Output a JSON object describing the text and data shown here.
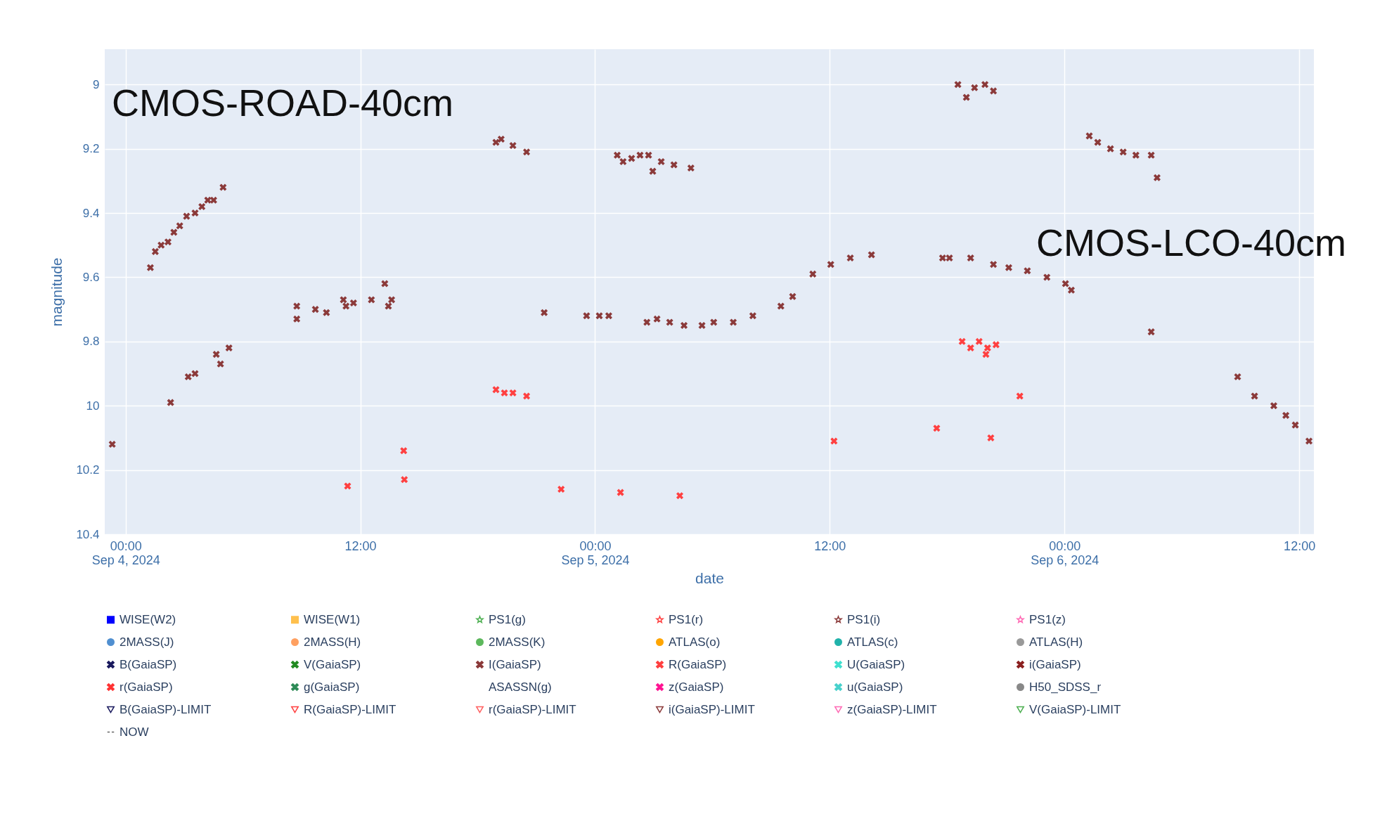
{
  "chart_data": {
    "type": "scatter",
    "xlabel": "date",
    "ylabel": "magnitude",
    "annotations": [
      "CMOS-ROAD-40cm",
      "CMOS-LCO-40cm"
    ],
    "xlim": [
      "2024-09-03T22:56",
      "2024-09-06T12:45"
    ],
    "xticks": [
      {
        "value": "2024-09-04T00:00",
        "label": "00:00\nSep 4, 2024"
      },
      {
        "value": "2024-09-04T12:00",
        "label": "12:00"
      },
      {
        "value": "2024-09-05T00:00",
        "label": "00:00\nSep 5, 2024"
      },
      {
        "value": "2024-09-05T12:00",
        "label": "12:00"
      },
      {
        "value": "2024-09-06T00:00",
        "label": "00:00\nSep 6, 2024"
      },
      {
        "value": "2024-09-06T12:00",
        "label": "12:00"
      }
    ],
    "ylim": [
      10.4,
      8.89
    ],
    "yticks": [
      9,
      9.2,
      9.4,
      9.6,
      9.8,
      10,
      10.2,
      10.4
    ],
    "grid": true,
    "legend": "bottom",
    "series": [
      {
        "name": "WISE(W2)",
        "color": "#0000ff",
        "marker": "square"
      },
      {
        "name": "WISE(W1)",
        "color": "#ffc04d",
        "marker": "square"
      },
      {
        "name": "PS1(g)",
        "color": "#4caf50",
        "marker": "star"
      },
      {
        "name": "PS1(r)",
        "color": "#ff4040",
        "marker": "star"
      },
      {
        "name": "PS1(i)",
        "color": "#8b3a3a",
        "marker": "star"
      },
      {
        "name": "PS1(z)",
        "color": "#ff69b4",
        "marker": "star"
      },
      {
        "name": "2MASS(J)",
        "color": "#4f8fd0",
        "marker": "circle"
      },
      {
        "name": "2MASS(H)",
        "color": "#ffa060",
        "marker": "circle"
      },
      {
        "name": "2MASS(K)",
        "color": "#5cb85c",
        "marker": "circle"
      },
      {
        "name": "ATLAS(o)",
        "color": "#ffa500",
        "marker": "circle"
      },
      {
        "name": "ATLAS(c)",
        "color": "#20b2aa",
        "marker": "circle"
      },
      {
        "name": "ATLAS(H)",
        "color": "#999999",
        "marker": "circle"
      },
      {
        "name": "B(GaiaSP)",
        "color": "#1a1a5e",
        "marker": "cross"
      },
      {
        "name": "V(GaiaSP)",
        "color": "#228b22",
        "marker": "cross"
      },
      {
        "name": "I(GaiaSP)",
        "color": "#8b3a3a",
        "marker": "cross",
        "x": [
          "2024-09-03T23:19",
          "2024-09-04T01:16",
          "2024-09-04T01:31",
          "2024-09-04T01:49",
          "2024-09-04T02:10",
          "2024-09-04T02:28",
          "2024-09-04T02:46",
          "2024-09-04T03:07",
          "2024-09-04T03:33",
          "2024-09-04T03:54",
          "2024-09-04T04:12",
          "2024-09-04T04:30",
          "2024-09-04T04:59",
          "2024-09-04T02:18",
          "2024-09-04T03:12",
          "2024-09-04T03:33",
          "2024-09-04T04:38",
          "2024-09-04T04:51",
          "2024-09-04T05:17",
          "2024-09-04T08:45",
          "2024-09-04T08:45",
          "2024-09-04T09:42",
          "2024-09-04T10:16",
          "2024-09-04T11:08",
          "2024-09-04T11:16",
          "2024-09-04T11:39",
          "2024-09-04T12:34",
          "2024-09-04T13:15",
          "2024-09-04T13:26",
          "2024-09-04T13:36",
          "2024-09-04T18:56",
          "2024-09-04T19:12",
          "2024-09-04T19:48",
          "2024-09-04T20:30",
          "2024-09-04T21:24",
          "2024-09-04T23:34",
          "2024-09-05T00:13",
          "2024-09-05T00:42",
          "2024-09-05T01:08",
          "2024-09-05T01:26",
          "2024-09-05T01:52",
          "2024-09-05T02:18",
          "2024-09-05T02:44",
          "2024-09-05T02:57",
          "2024-09-05T03:23",
          "2024-09-05T04:02",
          "2024-09-05T04:54",
          "2024-09-05T02:39",
          "2024-09-05T03:10",
          "2024-09-05T03:49",
          "2024-09-05T04:33",
          "2024-09-05T05:28",
          "2024-09-05T06:04",
          "2024-09-05T07:04",
          "2024-09-05T08:04",
          "2024-09-05T09:30",
          "2024-09-05T10:06",
          "2024-09-05T11:08",
          "2024-09-05T12:03",
          "2024-09-05T13:03",
          "2024-09-05T14:08",
          "2024-09-05T17:46",
          "2024-09-05T18:07",
          "2024-09-05T19:12",
          "2024-09-05T20:22",
          "2024-09-05T21:09",
          "2024-09-05T22:06",
          "2024-09-05T23:06",
          "2024-09-06T00:03",
          "2024-09-06T00:21",
          "2024-09-05T18:33",
          "2024-09-05T18:59",
          "2024-09-05T19:24",
          "2024-09-05T19:56",
          "2024-09-05T20:22",
          "2024-09-06T01:16",
          "2024-09-06T01:42",
          "2024-09-06T02:21",
          "2024-09-06T03:00",
          "2024-09-06T03:39",
          "2024-09-06T04:26",
          "2024-09-06T04:44",
          "2024-09-06T04:26",
          "2024-09-06T08:51",
          "2024-09-06T09:43",
          "2024-09-06T10:42",
          "2024-09-06T11:19",
          "2024-09-06T11:48",
          "2024-09-06T12:30"
        ],
        "values": [
          10.12,
          9.57,
          9.52,
          9.5,
          9.49,
          9.46,
          9.44,
          9.41,
          9.4,
          9.38,
          9.36,
          9.36,
          9.32,
          9.99,
          9.91,
          9.9,
          9.84,
          9.87,
          9.82,
          9.69,
          9.73,
          9.7,
          9.71,
          9.67,
          9.69,
          9.68,
          9.67,
          9.62,
          9.69,
          9.67,
          9.18,
          9.17,
          9.19,
          9.21,
          9.71,
          9.72,
          9.72,
          9.72,
          9.22,
          9.24,
          9.23,
          9.22,
          9.22,
          9.27,
          9.24,
          9.25,
          9.26,
          9.74,
          9.73,
          9.74,
          9.75,
          9.75,
          9.74,
          9.74,
          9.72,
          9.69,
          9.66,
          9.59,
          9.56,
          9.54,
          9.53,
          9.54,
          9.54,
          9.54,
          9.56,
          9.57,
          9.58,
          9.6,
          9.62,
          9.64,
          9.0,
          9.04,
          9.01,
          9.0,
          9.02,
          9.16,
          9.18,
          9.2,
          9.21,
          9.22,
          9.22,
          9.29,
          9.77,
          9.91,
          9.97,
          10.0,
          10.03,
          10.06,
          10.11
        ]
      },
      {
        "name": "R(GaiaSP)",
        "color": "#ff4040",
        "marker": "cross",
        "x": [
          "2024-09-04T11:21",
          "2024-09-04T14:13",
          "2024-09-04T14:15",
          "2024-09-04T18:56",
          "2024-09-04T19:22",
          "2024-09-04T19:48",
          "2024-09-04T20:30",
          "2024-09-04T22:16",
          "2024-09-05T01:18",
          "2024-09-05T04:20",
          "2024-09-05T12:13",
          "2024-09-05T17:28",
          "2024-09-05T20:14",
          "2024-09-05T18:46",
          "2024-09-05T19:12",
          "2024-09-05T19:38",
          "2024-09-05T20:04",
          "2024-09-05T20:30",
          "2024-09-05T19:59",
          "2024-09-05T21:43"
        ],
        "values": [
          10.25,
          10.14,
          10.23,
          9.95,
          9.96,
          9.96,
          9.97,
          10.26,
          10.27,
          10.28,
          10.11,
          10.07,
          10.1,
          9.8,
          9.82,
          9.8,
          9.82,
          9.81,
          9.84,
          9.97
        ]
      },
      {
        "name": "U(GaiaSP)",
        "color": "#40e0d0",
        "marker": "cross"
      },
      {
        "name": "i(GaiaSP)",
        "color": "#8b2020",
        "marker": "cross"
      },
      {
        "name": "r(GaiaSP)",
        "color": "#ff3333",
        "marker": "cross"
      },
      {
        "name": "g(GaiaSP)",
        "color": "#2e8b57",
        "marker": "cross"
      },
      {
        "name": "ASASSN(g)",
        "marker": "none"
      },
      {
        "name": "z(GaiaSP)",
        "color": "#ff1493",
        "marker": "cross"
      },
      {
        "name": "u(GaiaSP)",
        "color": "#48d1cc",
        "marker": "cross"
      },
      {
        "name": "H50_SDSS_r",
        "color": "#888888",
        "marker": "circle"
      },
      {
        "name": "B(GaiaSP)-LIMIT",
        "color": "#1a1a5e",
        "marker": "triangle-down"
      },
      {
        "name": "R(GaiaSP)-LIMIT",
        "color": "#ff4040",
        "marker": "triangle-down"
      },
      {
        "name": "r(GaiaSP)-LIMIT",
        "color": "#ff6060",
        "marker": "triangle-down"
      },
      {
        "name": "i(GaiaSP)-LIMIT",
        "color": "#8b3a3a",
        "marker": "triangle-down"
      },
      {
        "name": "z(GaiaSP)-LIMIT",
        "color": "#ff69b4",
        "marker": "triangle-down"
      },
      {
        "name": "V(GaiaSP)-LIMIT",
        "color": "#4caf50",
        "marker": "triangle-down"
      },
      {
        "name": "NOW",
        "type": "line",
        "color": "#666666",
        "line_style": "dashed"
      }
    ]
  }
}
